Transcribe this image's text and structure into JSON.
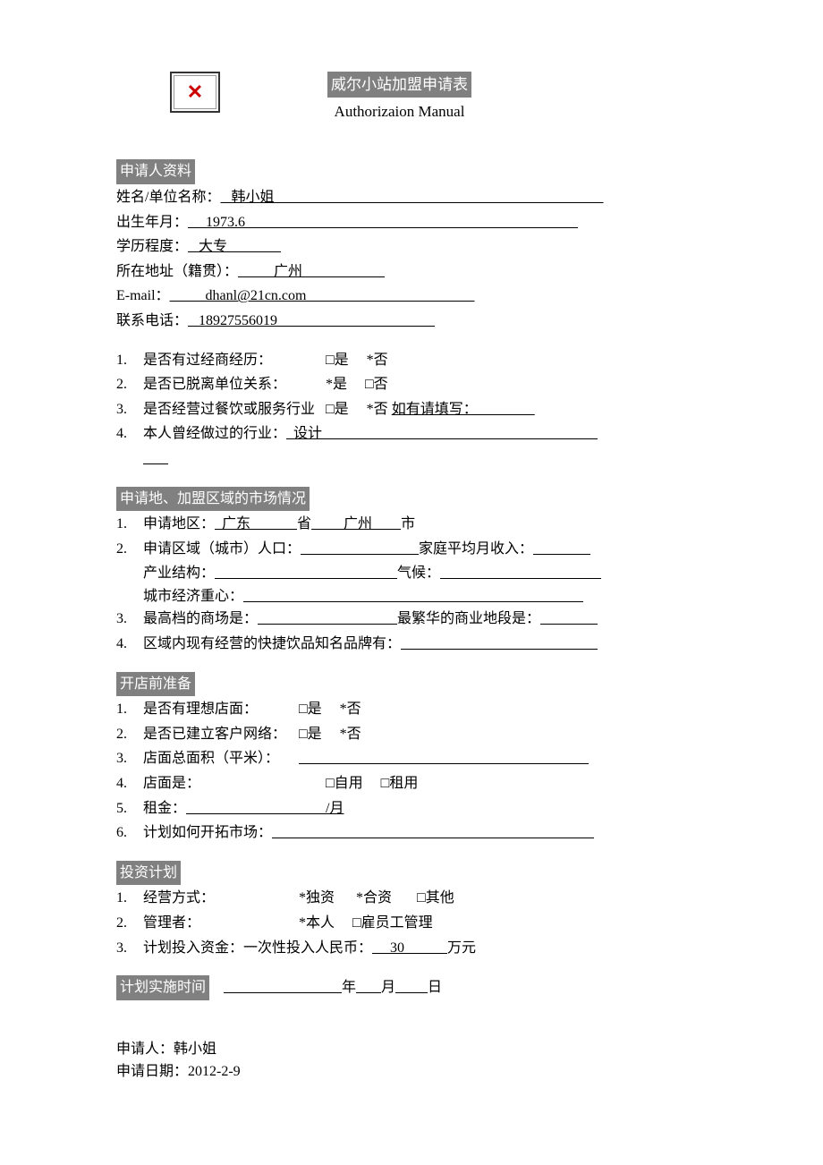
{
  "header": {
    "title": "威尔小站加盟申请表",
    "subtitle": "Authorizaion Manual",
    "logo_symbol": "✕"
  },
  "applicant": {
    "section_title": "申请人资料",
    "name_label": "姓名/单位名称：",
    "name_value": "   韩小姐                                                                                            ",
    "birth_label": "出生年月：",
    "birth_value": "     1973.6                                                                                             ",
    "education_label": "学历程度：",
    "education_value": "   大专               ",
    "address_label": "所在地址（籍贯）：",
    "address_value": "          广州                       ",
    "email_label": "E-mail：",
    "email_value": "          dhanl@21cn.com                                               ",
    "phone_label": "联系电话：",
    "phone_value": "   18927556019                                            "
  },
  "experience": {
    "q1_label": "是否有过经商经历：",
    "q1_yes": "□是",
    "q1_no": "*否",
    "q2_label": "是否已脱离单位关系：",
    "q2_yes": "*是",
    "q2_no": "□否",
    "q3_label": "是否经营过餐饮或服务行业",
    "q3_yes": "□是",
    "q3_no": "*否",
    "q3_extra": "如有请填写：                ",
    "q4_label": "本人曾经做过的行业：",
    "q4_value": "  设计                                                                             ",
    "q4_cont": "       "
  },
  "market": {
    "section_title": "申请地、加盟区域的市场情况",
    "q1_label": "申请地区：",
    "q1_province": "  广东             ",
    "q1_province_suffix": "省",
    "q1_city": "         广州        ",
    "q1_city_suffix": "市",
    "q2_label": "申请区域（城市）人口：",
    "q2_blank1": "                                 ",
    "q2_income_label": "家庭平均月收入：",
    "q2_blank2": "                ",
    "q2_industry_label": "产业结构：",
    "q2_blank3": "                                                   ",
    "q2_climate_label": "气候：",
    "q2_blank4": "                                             ",
    "q2_econ_label": "城市经济重心：",
    "q2_blank5": "                                                                                               ",
    "q3_label": "最高档的商场是：",
    "q3_blank1": "                                       ",
    "q3_district_label": "最繁华的商业地段是：",
    "q3_blank2": "                ",
    "q4_label": "区域内现有经营的快捷饮品知名品牌有：",
    "q4_blank": "                                                       "
  },
  "preparation": {
    "section_title": "开店前准备",
    "q1_label": "是否有理想店面：",
    "q1_yes": "□是",
    "q1_no": "*否",
    "q2_label": "是否已建立客户网络：",
    "q2_yes": "□是",
    "q2_no": "*否",
    "q3_label": "店面总面积（平米）：",
    "q3_blank": "                                                                                 ",
    "q4_label": "店面是：",
    "q4_own": "□自用",
    "q4_rent": "□租用",
    "q5_label": "租金：",
    "q5_blank": "                                       ",
    "q5_suffix": "/月",
    "q6_label": "计划如何开拓市场：",
    "q6_blank": "                                                                                          "
  },
  "investment": {
    "section_title": "投资计划",
    "q1_label": "经营方式：",
    "q1_solo": "*独资",
    "q1_joint": "*合资",
    "q1_other": "□其他",
    "q2_label": "管理者：",
    "q2_self": "*本人",
    "q2_employee": "□雇员工管理",
    "q3_label": "计划投入资金：一次性投入人民币：",
    "q3_value": "     30            ",
    "q3_suffix": "万元"
  },
  "schedule": {
    "section_title": "计划实施时间",
    "blank_year": "                                 ",
    "year_suffix": "年",
    "blank_month": "       ",
    "month_suffix": "月",
    "blank_day": "         ",
    "day_suffix": "日"
  },
  "footer": {
    "applicant_label": "申请人：",
    "applicant_name": "韩小姐",
    "date_label": "申请日期：",
    "date_value": "2012-2-9"
  }
}
